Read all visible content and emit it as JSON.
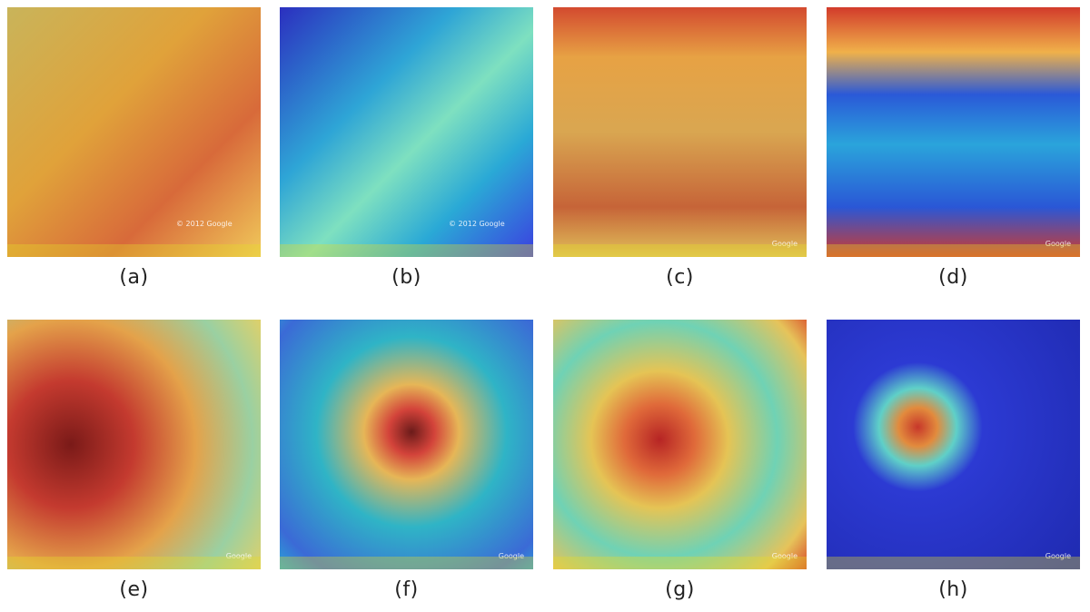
{
  "panels": [
    {
      "id": "a",
      "caption": "(a)",
      "bg": "bg-a",
      "watermark": "© 2012 Google"
    },
    {
      "id": "b",
      "caption": "(b)",
      "bg": "bg-b",
      "watermark": "© 2012 Google"
    },
    {
      "id": "c",
      "caption": "(c)",
      "bg": "bg-c",
      "watermark": "Google"
    },
    {
      "id": "d",
      "caption": "(d)",
      "bg": "bg-d",
      "watermark": "Google"
    },
    {
      "id": "e",
      "caption": "(e)",
      "bg": "bg-e",
      "watermark": "Google"
    },
    {
      "id": "f",
      "caption": "(f)",
      "bg": "bg-f",
      "watermark": "Google"
    },
    {
      "id": "g",
      "caption": "(g)",
      "bg": "bg-g",
      "watermark": "Google"
    },
    {
      "id": "h",
      "caption": "(h)",
      "bg": "bg-h",
      "watermark": "Google"
    }
  ]
}
